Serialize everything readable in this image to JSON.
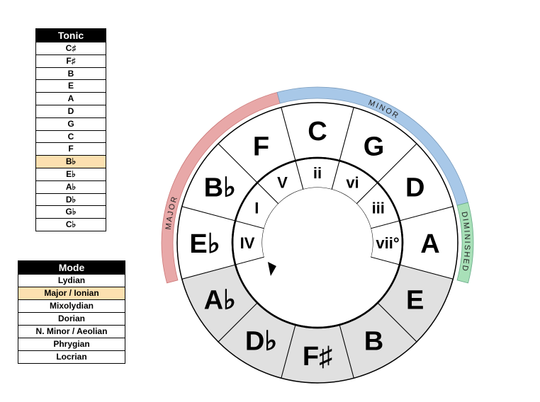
{
  "tonic_panel": {
    "header": "Tonic",
    "selected_index": 9,
    "items": [
      "C♯",
      "F♯",
      "B",
      "E",
      "A",
      "D",
      "G",
      "C",
      "F",
      "B♭",
      "E♭",
      "A♭",
      "D♭",
      "G♭",
      "C♭"
    ]
  },
  "mode_panel": {
    "header": "Mode",
    "selected_index": 1,
    "items": [
      "Lydian",
      "Major / Ionian",
      "Mixolydian",
      "Dorian",
      "N. Minor / Aeolian",
      "Phrygian",
      "Locrian"
    ]
  },
  "wheel": {
    "outer_keys": [
      "C",
      "G",
      "D",
      "A",
      "E",
      "B",
      "F♯",
      "D♭",
      "A♭",
      "E♭",
      "B♭",
      "F"
    ],
    "highlighted_key_fill": "#ffffff",
    "dimmed_key_fill": "#e0e0e0",
    "dimmed_keys": [
      4,
      5,
      6,
      7,
      8
    ],
    "inner_labels": [
      "ii",
      "vi",
      "iii",
      "vii°",
      "IV",
      "I",
      "V"
    ],
    "arc_labels": {
      "major": "MAJOR",
      "minor": "MINOR",
      "diminished": "DIMINISHED"
    },
    "colors": {
      "major": "#e8a8a8",
      "minor": "#a8c8e8",
      "diminished": "#a8e0b8"
    }
  }
}
